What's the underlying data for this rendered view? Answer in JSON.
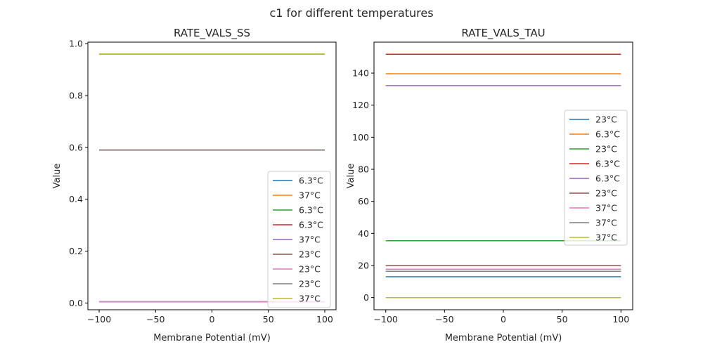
{
  "chart_data": [
    {
      "type": "line",
      "title": "RATE_VALS_SS",
      "xlabel": "Membrane Potential (mV)",
      "ylabel": "Value",
      "xlim": [
        -110,
        110
      ],
      "ylim": [
        -0.026,
        1.006
      ],
      "xticks": [
        -100,
        -50,
        0,
        50,
        100
      ],
      "xtick_labels": [
        "−100",
        "−50",
        "0",
        "50",
        "100"
      ],
      "yticks": [
        0.0,
        0.2,
        0.4,
        0.6,
        0.8,
        1.0
      ],
      "ytick_labels": [
        "0.0",
        "0.2",
        "0.4",
        "0.6",
        "0.8",
        "1.0"
      ],
      "grid": false,
      "legend_position": "lower-right",
      "x": [
        -100,
        100
      ],
      "series": [
        {
          "name": "6.3°C",
          "color": "#1f77b4",
          "values": [
            0.005,
            0.005
          ]
        },
        {
          "name": "37°C",
          "color": "#ff7f0e",
          "values": [
            0.005,
            0.005
          ]
        },
        {
          "name": "6.3°C",
          "color": "#2ca02c",
          "values": [
            0.96,
            0.96
          ]
        },
        {
          "name": "6.3°C",
          "color": "#d62728",
          "values": [
            0.59,
            0.59
          ]
        },
        {
          "name": "37°C",
          "color": "#9467bd",
          "values": [
            0.005,
            0.005
          ]
        },
        {
          "name": "23°C",
          "color": "#8c564b",
          "values": [
            0.59,
            0.59
          ]
        },
        {
          "name": "23°C",
          "color": "#e377c2",
          "values": [
            0.005,
            0.005
          ]
        },
        {
          "name": "23°C",
          "color": "#7f7f7f",
          "values": [
            0.59,
            0.59
          ]
        },
        {
          "name": "37°C",
          "color": "#bcbd22",
          "values": [
            0.96,
            0.96
          ]
        }
      ]
    },
    {
      "type": "line",
      "title": "RATE_VALS_TAU",
      "xlabel": "Membrane Potential (mV)",
      "ylabel": "Value",
      "xlim": [
        -110,
        110
      ],
      "ylim": [
        -7.6,
        159.3
      ],
      "xticks": [
        -100,
        -50,
        0,
        50,
        100
      ],
      "xtick_labels": [
        "−100",
        "−50",
        "0",
        "50",
        "100"
      ],
      "yticks": [
        0,
        20,
        40,
        60,
        80,
        100,
        120,
        140
      ],
      "ytick_labels": [
        "0",
        "20",
        "40",
        "60",
        "80",
        "100",
        "120",
        "140"
      ],
      "grid": false,
      "legend_position": "center-right",
      "x": [
        -100,
        100
      ],
      "series": [
        {
          "name": "23°C",
          "color": "#1f77b4",
          "values": [
            13.0,
            13.0
          ]
        },
        {
          "name": "6.3°C",
          "color": "#ff7f0e",
          "values": [
            139.6,
            139.6
          ]
        },
        {
          "name": "23°C",
          "color": "#2ca02c",
          "values": [
            35.4,
            35.4
          ]
        },
        {
          "name": "6.3°C",
          "color": "#d62728",
          "values": [
            151.7,
            151.7
          ]
        },
        {
          "name": "6.3°C",
          "color": "#9467bd",
          "values": [
            132.2,
            132.2
          ]
        },
        {
          "name": "23°C",
          "color": "#8c564b",
          "values": [
            19.9,
            19.9
          ]
        },
        {
          "name": "37°C",
          "color": "#e377c2",
          "values": [
            17.7,
            17.7
          ]
        },
        {
          "name": "37°C",
          "color": "#7f7f7f",
          "values": [
            16.4,
            16.4
          ]
        },
        {
          "name": "37°C",
          "color": "#bcbd22",
          "values": [
            0.0,
            0.0
          ]
        }
      ]
    }
  ],
  "figure": {
    "suptitle": "c1 for different temperatures"
  }
}
